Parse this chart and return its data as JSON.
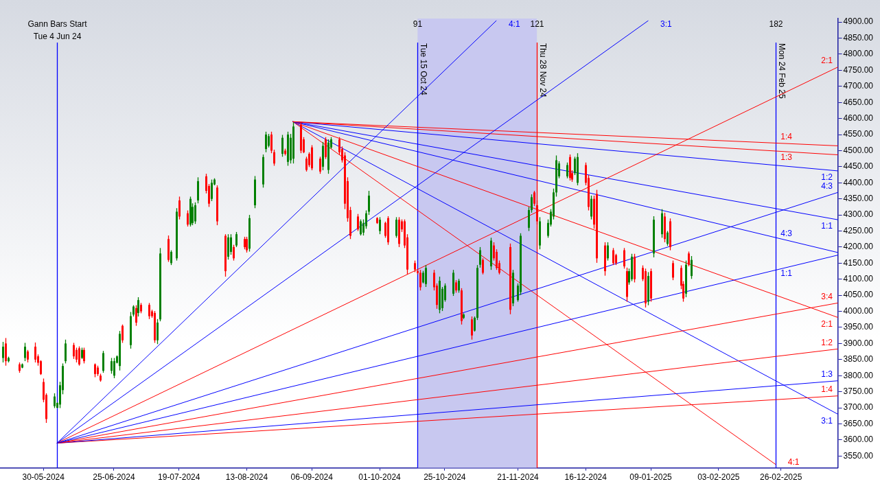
{
  "chart_data": {
    "type": "candlestick",
    "xlim": [
      "2024-05-14",
      "2025-03-19"
    ],
    "xticks": [
      {
        "value": "2024-05-30",
        "label": "30-05-2024"
      },
      {
        "value": "2024-06-25",
        "label": "25-06-2024"
      },
      {
        "value": "2024-07-19",
        "label": "19-07-2024"
      },
      {
        "value": "2024-08-13",
        "label": "13-08-2024"
      },
      {
        "value": "2024-09-06",
        "label": "06-09-2024"
      },
      {
        "value": "2024-10-01",
        "label": "01-10-2024"
      },
      {
        "value": "2024-10-25",
        "label": "25-10-2024"
      },
      {
        "value": "2024-11-21",
        "label": "21-11-2024"
      },
      {
        "value": "2024-12-16",
        "label": "16-12-2024"
      },
      {
        "value": "2025-01-09",
        "label": "09-01-2025"
      },
      {
        "value": "2025-02-03",
        "label": "03-02-2025"
      },
      {
        "value": "2025-02-26",
        "label": "26-02-2025"
      }
    ],
    "ylim": [
      3513,
      4911
    ],
    "yticks": [
      {
        "value": 3550,
        "label": "3550.00"
      },
      {
        "value": 3600,
        "label": "3600.00"
      },
      {
        "value": 3650,
        "label": "3650.00"
      },
      {
        "value": 3700,
        "label": "3700.00"
      },
      {
        "value": 3750,
        "label": "3750.00"
      },
      {
        "value": 3800,
        "label": "3800.00"
      },
      {
        "value": 3850,
        "label": "3850.00"
      },
      {
        "value": 3900,
        "label": "3900.00"
      },
      {
        "value": 3950,
        "label": "3950.00"
      },
      {
        "value": 4000,
        "label": "4000.00"
      },
      {
        "value": 4050,
        "label": "4050.00"
      },
      {
        "value": 4100,
        "label": "4100.00"
      },
      {
        "value": 4150,
        "label": "4150.00"
      },
      {
        "value": 4200,
        "label": "4200.00"
      },
      {
        "value": 4250,
        "label": "4250.00"
      },
      {
        "value": 4300,
        "label": "4300.00"
      },
      {
        "value": 4350,
        "label": "4350.00"
      },
      {
        "value": 4400,
        "label": "4400.00"
      },
      {
        "value": 4450,
        "label": "4450.00"
      },
      {
        "value": 4500,
        "label": "4500.00"
      },
      {
        "value": 4550,
        "label": "4550.00"
      },
      {
        "value": 4600,
        "label": "4600.00"
      },
      {
        "value": 4650,
        "label": "4650.00"
      },
      {
        "value": 4700,
        "label": "4700.00"
      },
      {
        "value": 4750,
        "label": "4750.00"
      },
      {
        "value": 4800,
        "label": "4800.00"
      },
      {
        "value": 4850,
        "label": "4850.00"
      },
      {
        "value": 4900,
        "label": "4900.00"
      }
    ],
    "bands": [
      {
        "axis": "x",
        "from": "2024-10-15",
        "to": "2024-11-28",
        "color": "#c8c8f0"
      }
    ],
    "ref_lines": [
      {
        "axis": "x",
        "value": "2024-06-04",
        "label": "Tue 4 Jun 24",
        "color": "#0000ff"
      },
      {
        "axis": "x",
        "value": "2024-10-15",
        "label": "Tue 15 Oct 24",
        "color": "#0000ff"
      },
      {
        "axis": "x",
        "value": "2024-11-28",
        "label": "Thu 28 Nov 24",
        "color": "#ff0000"
      },
      {
        "axis": "x",
        "value": "2025-02-24",
        "label": "Mon 24 Feb 25",
        "color": "#0000ff"
      }
    ],
    "annotations": [
      "Gann Bars Start",
      "91",
      "121",
      "182"
    ],
    "series": [
      {
        "type": "line",
        "name": "4:1",
        "color": "#0000ff",
        "x": [
          "2024-06-04",
          "2024-11-13"
        ],
        "values": [
          3590,
          4904
        ]
      },
      {
        "type": "line",
        "name": "3:1",
        "color": "#0000ff",
        "x": [
          "2024-06-04",
          "2025-01-08"
        ],
        "values": [
          3590,
          4904
        ]
      },
      {
        "type": "line",
        "name": "2:1",
        "color": "#ff0000",
        "x": [
          "2024-06-04",
          "2025-03-19"
        ],
        "values": [
          3590,
          4760
        ]
      },
      {
        "type": "line",
        "name": "4:3",
        "color": "#0000ff",
        "x": [
          "2024-06-04",
          "2025-03-19"
        ],
        "values": [
          3590,
          4370
        ]
      },
      {
        "type": "line",
        "name": "1:1",
        "color": "#0000ff",
        "x": [
          "2024-06-04",
          "2025-03-19"
        ],
        "values": [
          3590,
          4175
        ]
      },
      {
        "type": "line",
        "name": "3:4",
        "color": "#ff0000",
        "x": [
          "2024-06-04",
          "2025-03-19"
        ],
        "values": [
          3590,
          4026
        ]
      },
      {
        "type": "line",
        "name": "1:2",
        "color": "#ff0000",
        "x": [
          "2024-06-04",
          "2025-03-19"
        ],
        "values": [
          3590,
          3883
        ]
      },
      {
        "type": "line",
        "name": "1:3",
        "color": "#0000ff",
        "x": [
          "2024-06-04",
          "2025-03-19"
        ],
        "values": [
          3590,
          3784
        ]
      },
      {
        "type": "line",
        "name": "1:4",
        "color": "#ff0000",
        "x": [
          "2024-06-04",
          "2025-03-19"
        ],
        "values": [
          3590,
          3737
        ]
      },
      {
        "type": "line",
        "name": "1:4",
        "color": "#ff0000",
        "x": [
          "2024-08-30",
          "2025-03-19"
        ],
        "values": [
          4590,
          4515
        ]
      },
      {
        "type": "line",
        "name": "1:3",
        "color": "#ff0000",
        "x": [
          "2024-08-30",
          "2025-03-19"
        ],
        "values": [
          4590,
          4487
        ]
      },
      {
        "type": "line",
        "name": "1:2",
        "color": "#0000ff",
        "x": [
          "2024-08-30",
          "2025-03-19"
        ],
        "values": [
          4590,
          4437
        ]
      },
      {
        "type": "line",
        "name": "1:1",
        "color": "#0000ff",
        "x": [
          "2024-08-30",
          "2025-03-19"
        ],
        "values": [
          4590,
          4285
        ]
      },
      {
        "type": "line",
        "name": "4:3",
        "color": "#0000ff",
        "x": [
          "2024-08-30",
          "2025-03-19"
        ],
        "values": [
          4590,
          4183
        ]
      },
      {
        "type": "line",
        "name": "2:1",
        "color": "#ff0000",
        "x": [
          "2024-08-30",
          "2025-03-19"
        ],
        "values": [
          4590,
          3981
        ]
      },
      {
        "type": "line",
        "name": "3:1",
        "color": "#0000ff",
        "x": [
          "2024-08-30",
          "2025-03-19"
        ],
        "values": [
          4590,
          3680
        ]
      },
      {
        "type": "line",
        "name": "4:1",
        "color": "#ff0000",
        "x": [
          "2024-08-30",
          "2025-02-24"
        ],
        "values": [
          4590,
          3524
        ]
      },
      {
        "color": "#008000",
        "x": [
          "2024-05-15",
          "2024-05-17",
          "2024-05-22",
          "2024-05-23",
          "2024-06-03",
          "2024-06-04",
          "2024-06-05",
          "2024-06-06",
          "2024-06-07",
          "2024-06-13",
          "2024-06-21",
          "2024-06-24",
          "2024-06-25",
          "2024-06-26",
          "2024-06-27",
          "2024-07-01",
          "2024-07-02",
          "2024-07-04",
          "2024-07-11",
          "2024-07-12",
          "2024-07-16",
          "2024-07-18",
          "2024-07-23",
          "2024-07-24",
          "2024-07-25",
          "2024-07-26",
          "2024-07-31",
          "2024-08-01",
          "2024-08-06",
          "2024-08-07",
          "2024-08-09",
          "2024-08-14",
          "2024-08-16",
          "2024-08-19",
          "2024-08-20",
          "2024-08-21",
          "2024-08-26",
          "2024-08-28",
          "2024-08-29",
          "2024-08-30",
          "2024-09-10",
          "2024-09-12",
          "2024-09-13",
          "2024-09-24",
          "2024-09-25",
          "2024-09-26",
          "2024-09-27",
          "2024-10-01",
          "2024-10-07",
          "2024-10-17",
          "2024-10-18",
          "2024-10-23",
          "2024-10-24",
          "2024-10-25",
          "2024-10-28",
          "2024-10-30",
          "2024-11-01",
          "2024-11-05",
          "2024-11-06",
          "2024-11-07",
          "2024-11-11",
          "2024-11-19",
          "2024-11-21",
          "2024-11-22",
          "2024-11-25",
          "2024-11-26",
          "2024-11-29",
          "2024-12-02",
          "2024-12-03",
          "2024-12-04",
          "2024-12-05",
          "2024-12-06",
          "2024-12-09",
          "2024-12-12",
          "2024-12-13",
          "2024-12-18",
          "2024-12-24",
          "2025-01-01",
          "2025-01-02",
          "2025-01-08",
          "2025-01-10",
          "2025-01-13",
          "2025-01-15",
          "2025-01-22",
          "2025-01-24"
        ],
        "ohlc": [
          [
            3855,
            3905,
            3841,
            3890
          ],
          [
            3845,
            3859,
            3841,
            3855
          ],
          [
            3825,
            3838,
            3823,
            3835
          ],
          [
            3855,
            3902,
            3845,
            3890
          ],
          [
            3705,
            3745,
            3699,
            3735
          ],
          [
            3700,
            3717,
            3699,
            3715
          ],
          [
            3710,
            3781,
            3699,
            3770
          ],
          [
            3755,
            3838,
            3742,
            3830
          ],
          [
            3845,
            3912,
            3838,
            3900
          ],
          [
            3855,
            3887,
            3852,
            3880
          ],
          [
            3815,
            3877,
            3809,
            3870
          ],
          [
            3815,
            3855,
            3806,
            3845
          ],
          [
            3800,
            3855,
            3792,
            3845
          ],
          [
            3840,
            3863,
            3838,
            3860
          ],
          [
            3830,
            3939,
            3816,
            3930
          ],
          [
            3895,
            3998,
            3884,
            3985
          ],
          [
            3990,
            4019,
            3984,
            4015
          ],
          [
            3995,
            4044,
            3984,
            4035
          ],
          [
            3910,
            3976,
            3898,
            3965
          ],
          [
            3975,
            4197,
            3969,
            4180
          ],
          [
            4150,
            4190,
            4144,
            4185
          ],
          [
            4165,
            4321,
            4158,
            4310
          ],
          [
            4270,
            4357,
            4264,
            4350
          ],
          [
            4275,
            4336,
            4268,
            4325
          ],
          [
            4280,
            4339,
            4272,
            4330
          ],
          [
            4345,
            4417,
            4336,
            4405
          ],
          [
            4350,
            4410,
            4343,
            4400
          ],
          [
            4395,
            4414,
            4392,
            4410
          ],
          [
            4170,
            4240,
            4161,
            4230
          ],
          [
            4185,
            4240,
            4176,
            4230
          ],
          [
            4205,
            4247,
            4200,
            4240
          ],
          [
            4195,
            4300,
            4186,
            4290
          ],
          [
            4330,
            4421,
            4321,
            4410
          ],
          [
            4395,
            4488,
            4385,
            4480
          ],
          [
            4505,
            4559,
            4495,
            4550
          ],
          [
            4515,
            4552,
            4510,
            4545
          ],
          [
            4490,
            4549,
            4481,
            4540
          ],
          [
            4465,
            4559,
            4453,
            4550
          ],
          [
            4470,
            4552,
            4460,
            4540
          ],
          [
            4475,
            4588,
            4460,
            4575
          ],
          [
            4450,
            4527,
            4439,
            4515
          ],
          [
            4440,
            4535,
            4428,
            4525
          ],
          [
            4510,
            4542,
            4506,
            4535
          ],
          [
            4240,
            4286,
            4236,
            4280
          ],
          [
            4245,
            4286,
            4236,
            4275
          ],
          [
            4265,
            4314,
            4257,
            4305
          ],
          [
            4310,
            4375,
            4300,
            4360
          ],
          [
            4250,
            4293,
            4240,
            4285
          ],
          [
            4235,
            4293,
            4229,
            4285
          ],
          [
            4090,
            4126,
            4087,
            4120
          ],
          [
            4085,
            4144,
            4076,
            4135
          ],
          [
            4005,
            4108,
            3994,
            4095
          ],
          [
            4010,
            4076,
            4001,
            4070
          ],
          [
            4035,
            4087,
            4030,
            4080
          ],
          [
            4055,
            4129,
            4048,
            4120
          ],
          [
            4065,
            4101,
            4058,
            4095
          ],
          [
            3980,
            3994,
            3976,
            3990
          ],
          [
            3940,
            3984,
            3937,
            3980
          ],
          [
            3980,
            4144,
            3973,
            4135
          ],
          [
            4145,
            4200,
            4136,
            4190
          ],
          [
            4140,
            4229,
            4129,
            4220
          ],
          [
            4025,
            4129,
            4016,
            4120
          ],
          [
            4035,
            4087,
            4030,
            4080
          ],
          [
            4060,
            4243,
            4051,
            4235
          ],
          [
            4260,
            4325,
            4250,
            4315
          ],
          [
            4315,
            4364,
            4307,
            4355
          ],
          [
            4205,
            4293,
            4193,
            4280
          ],
          [
            4235,
            4286,
            4229,
            4275
          ],
          [
            4270,
            4318,
            4264,
            4310
          ],
          [
            4295,
            4382,
            4286,
            4370
          ],
          [
            4370,
            4485,
            4357,
            4470
          ],
          [
            4420,
            4467,
            4414,
            4460
          ],
          [
            4420,
            4463,
            4414,
            4455
          ],
          [
            4430,
            4481,
            4424,
            4475
          ],
          [
            4400,
            4492,
            4392,
            4480
          ],
          [
            4295,
            4360,
            4286,
            4350
          ],
          [
            4165,
            4215,
            4158,
            4205
          ],
          [
            4090,
            4133,
            4083,
            4125
          ],
          [
            4100,
            4179,
            4094,
            4170
          ],
          [
            4030,
            4122,
            4019,
            4110
          ],
          [
            4180,
            4296,
            4168,
            4285
          ],
          [
            4240,
            4318,
            4229,
            4305
          ],
          [
            4210,
            4250,
            4204,
            4245
          ],
          [
            4055,
            4158,
            4044,
            4145
          ],
          [
            4110,
            4172,
            4101,
            4160
          ]
        ]
      },
      {
        "color": "#ff0000",
        "x": [
          "2024-05-16",
          "2024-05-21",
          "2024-05-24",
          "2024-05-27",
          "2024-05-28",
          "2024-05-29",
          "2024-05-30",
          "2024-05-31",
          "2024-06-10",
          "2024-06-11",
          "2024-06-12",
          "2024-06-14",
          "2024-06-18",
          "2024-06-19",
          "2024-06-20",
          "2024-06-28",
          "2024-07-03",
          "2024-07-05",
          "2024-07-08",
          "2024-07-09",
          "2024-07-10",
          "2024-07-15",
          "2024-07-19",
          "2024-07-22",
          "2024-07-29",
          "2024-07-30",
          "2024-08-02",
          "2024-08-05",
          "2024-08-08",
          "2024-08-12",
          "2024-08-13",
          "2024-08-22",
          "2024-08-23",
          "2024-08-27",
          "2024-09-02",
          "2024-09-03",
          "2024-09-04",
          "2024-09-05",
          "2024-09-06",
          "2024-09-09",
          "2024-09-11",
          "2024-09-16",
          "2024-09-17",
          "2024-09-18",
          "2024-09-19",
          "2024-09-20",
          "2024-09-23",
          "2024-09-30",
          "2024-10-03",
          "2024-10-04",
          "2024-10-08",
          "2024-10-09",
          "2024-10-10",
          "2024-10-11",
          "2024-10-14",
          "2024-10-15",
          "2024-10-16",
          "2024-10-21",
          "2024-10-22",
          "2024-10-29",
          "2024-10-31",
          "2024-11-04",
          "2024-11-08",
          "2024-11-12",
          "2024-11-13",
          "2024-11-14",
          "2024-11-18",
          "2024-11-27",
          "2024-11-28",
          "2024-12-10",
          "2024-12-11",
          "2024-12-16",
          "2024-12-17",
          "2024-12-19",
          "2024-12-20",
          "2024-12-23",
          "2024-12-26",
          "2024-12-27",
          "2024-12-30",
          "2024-12-31",
          "2025-01-03",
          "2025-01-06",
          "2025-01-07",
          "2025-01-09",
          "2025-01-14",
          "2025-01-16",
          "2025-01-17",
          "2025-01-20",
          "2025-01-21",
          "2025-01-23"
        ],
        "ohlc": [
          [
            3900,
            3917,
            3831,
            3845
          ],
          [
            3835,
            3841,
            3809,
            3815
          ],
          [
            3875,
            3880,
            3841,
            3850
          ],
          [
            3890,
            3903,
            3841,
            3850
          ],
          [
            3860,
            3866,
            3831,
            3840
          ],
          [
            3845,
            3848,
            3802,
            3805
          ],
          [
            3780,
            3791,
            3717,
            3725
          ],
          [
            3740,
            3745,
            3653,
            3665
          ],
          [
            3895,
            3902,
            3852,
            3860
          ],
          [
            3880,
            3887,
            3841,
            3850
          ],
          [
            3885,
            3891,
            3831,
            3835
          ],
          [
            3880,
            3887,
            3838,
            3845
          ],
          [
            3835,
            3838,
            3795,
            3805
          ],
          [
            3825,
            3831,
            3799,
            3805
          ],
          [
            3800,
            3806,
            3781,
            3785
          ],
          [
            3955,
            3959,
            3902,
            3910
          ],
          [
            4010,
            4019,
            3955,
            3965
          ],
          [
            4020,
            4026,
            3994,
            4000
          ],
          [
            4020,
            4026,
            3976,
            3985
          ],
          [
            4000,
            4005,
            3980,
            3985
          ],
          [
            3995,
            4001,
            3902,
            3910
          ],
          [
            4225,
            4236,
            4154,
            4160
          ],
          [
            4345,
            4357,
            4286,
            4295
          ],
          [
            4305,
            4314,
            4264,
            4270
          ],
          [
            4420,
            4428,
            4367,
            4375
          ],
          [
            4390,
            4396,
            4325,
            4335
          ],
          [
            4385,
            4392,
            4268,
            4280
          ],
          [
            4235,
            4240,
            4108,
            4125
          ],
          [
            4200,
            4207,
            4158,
            4165
          ],
          [
            4225,
            4232,
            4193,
            4200
          ],
          [
            4225,
            4232,
            4183,
            4190
          ],
          [
            4550,
            4559,
            4492,
            4500
          ],
          [
            4495,
            4503,
            4453,
            4460
          ],
          [
            4500,
            4506,
            4485,
            4490
          ],
          [
            4580,
            4588,
            4492,
            4500
          ],
          [
            4535,
            4542,
            4492,
            4495
          ],
          [
            4475,
            4481,
            4435,
            4440
          ],
          [
            4490,
            4495,
            4449,
            4455
          ],
          [
            4510,
            4517,
            4439,
            4445
          ],
          [
            4475,
            4481,
            4428,
            4435
          ],
          [
            4535,
            4542,
            4474,
            4480
          ],
          [
            4535,
            4542,
            4488,
            4495
          ],
          [
            4505,
            4513,
            4463,
            4470
          ],
          [
            4485,
            4495,
            4318,
            4335
          ],
          [
            4405,
            4417,
            4279,
            4290
          ],
          [
            4315,
            4325,
            4225,
            4235
          ],
          [
            4295,
            4303,
            4250,
            4255
          ],
          [
            4290,
            4293,
            4272,
            4275
          ],
          [
            4275,
            4279,
            4229,
            4235
          ],
          [
            4290,
            4296,
            4207,
            4215
          ],
          [
            4285,
            4293,
            4200,
            4210
          ],
          [
            4280,
            4286,
            4247,
            4255
          ],
          [
            4280,
            4286,
            4197,
            4205
          ],
          [
            4230,
            4240,
            4115,
            4130
          ],
          [
            4150,
            4158,
            4122,
            4130
          ],
          [
            4125,
            4129,
            4115,
            4120
          ],
          [
            4120,
            4129,
            4065,
            4075
          ],
          [
            4120,
            4129,
            4065,
            4075
          ],
          [
            4080,
            4087,
            4008,
            4020
          ],
          [
            4090,
            4097,
            4058,
            4065
          ],
          [
            4065,
            4072,
            3959,
            3970
          ],
          [
            3975,
            3984,
            3912,
            3925
          ],
          [
            4160,
            4165,
            4115,
            4120
          ],
          [
            4205,
            4215,
            4158,
            4165
          ],
          [
            4185,
            4193,
            4129,
            4135
          ],
          [
            4150,
            4158,
            4115,
            4120
          ],
          [
            4200,
            4211,
            3991,
            4005
          ],
          [
            4370,
            4375,
            4328,
            4335
          ],
          [
            4330,
            4345,
            4270,
            4280
          ],
          [
            4480,
            4488,
            4407,
            4415
          ],
          [
            4430,
            4439,
            4403,
            4410
          ],
          [
            4455,
            4463,
            4392,
            4400
          ],
          [
            4415,
            4424,
            4314,
            4325
          ],
          [
            4350,
            4360,
            4257,
            4270
          ],
          [
            4365,
            4378,
            4151,
            4165
          ],
          [
            4205,
            4215,
            4111,
            4125
          ],
          [
            4190,
            4197,
            4144,
            4150
          ],
          [
            4175,
            4179,
            4144,
            4150
          ],
          [
            4190,
            4197,
            4133,
            4140
          ],
          [
            4125,
            4136,
            4030,
            4045
          ],
          [
            4170,
            4179,
            4090,
            4100
          ],
          [
            4135,
            4143,
            4094,
            4100
          ],
          [
            4125,
            4133,
            4012,
            4025
          ],
          [
            4125,
            4133,
            4030,
            4040
          ],
          [
            4295,
            4307,
            4215,
            4225
          ],
          [
            4280,
            4289,
            4190,
            4200
          ],
          [
            4150,
            4158,
            4097,
            4105
          ],
          [
            4135,
            4143,
            4069,
            4080
          ],
          [
            4085,
            4094,
            4030,
            4040
          ],
          [
            4180,
            4186,
            4140,
            4145
          ]
        ]
      }
    ]
  }
}
